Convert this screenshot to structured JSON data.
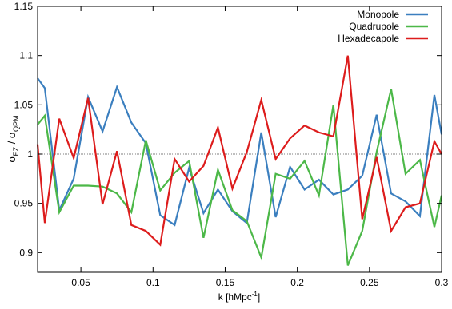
{
  "chart_data": {
    "type": "line",
    "xlabel_main": "k [hMpc",
    "xlabel_sup": "-1",
    "xlabel_end": "]",
    "ylabel_sigma": "σ",
    "ylabel_num_sub": "EZ",
    "ylabel_sep": " / ",
    "ylabel_den_sub": "QPM",
    "xlim": [
      0.02,
      0.3
    ],
    "ylim": [
      0.88,
      1.15
    ],
    "xticks": [
      0.05,
      0.1,
      0.15,
      0.2,
      0.25,
      0.3
    ],
    "xtick_labels": [
      "0.05",
      "0.1",
      "0.15",
      "0.2",
      "0.25",
      "0.3"
    ],
    "yticks": [
      0.9,
      0.95,
      1.0,
      1.05,
      1.1,
      1.15
    ],
    "ytick_labels": [
      "0.9",
      "0.95",
      "1",
      "1.05",
      "1.1",
      "1.15"
    ],
    "reference_line": 1.0,
    "legend_position": "top-right",
    "x": [
      0.02,
      0.025,
      0.035,
      0.045,
      0.055,
      0.065,
      0.075,
      0.085,
      0.095,
      0.105,
      0.115,
      0.125,
      0.135,
      0.145,
      0.155,
      0.165,
      0.175,
      0.185,
      0.195,
      0.205,
      0.215,
      0.225,
      0.235,
      0.245,
      0.255,
      0.265,
      0.275,
      0.285,
      0.295,
      0.3
    ],
    "series": [
      {
        "name": "Monopole",
        "color": "#3b7fbf",
        "values": [
          1.077,
          1.067,
          0.943,
          0.975,
          1.058,
          1.023,
          1.068,
          1.032,
          1.011,
          0.938,
          0.928,
          0.986,
          0.94,
          0.964,
          0.942,
          0.93,
          1.022,
          0.936,
          0.987,
          0.964,
          0.974,
          0.959,
          0.964,
          0.978,
          1.04,
          0.96,
          0.952,
          0.937,
          1.06,
          1.02
        ]
      },
      {
        "name": "Quadrupole",
        "color": "#4cb848",
        "values": [
          1.03,
          1.039,
          0.941,
          0.968,
          0.968,
          0.967,
          0.96,
          0.941,
          1.014,
          0.963,
          0.981,
          0.993,
          0.915,
          0.984,
          0.943,
          0.932,
          0.895,
          0.98,
          0.975,
          0.993,
          0.958,
          1.05,
          0.887,
          0.922,
          1.002,
          1.066,
          0.98,
          0.994,
          0.926,
          0.958
        ]
      },
      {
        "name": "Hexadecapole",
        "color": "#dd1c1c",
        "values": [
          1.01,
          0.93,
          1.036,
          0.996,
          1.057,
          0.949,
          1.003,
          0.928,
          0.922,
          0.908,
          0.995,
          0.972,
          0.988,
          1.027,
          0.965,
          1.002,
          1.055,
          0.995,
          1.016,
          1.029,
          1.022,
          1.018,
          1.1,
          0.934,
          0.997,
          0.922,
          0.946,
          0.95,
          1.013,
          1.0
        ]
      }
    ]
  }
}
